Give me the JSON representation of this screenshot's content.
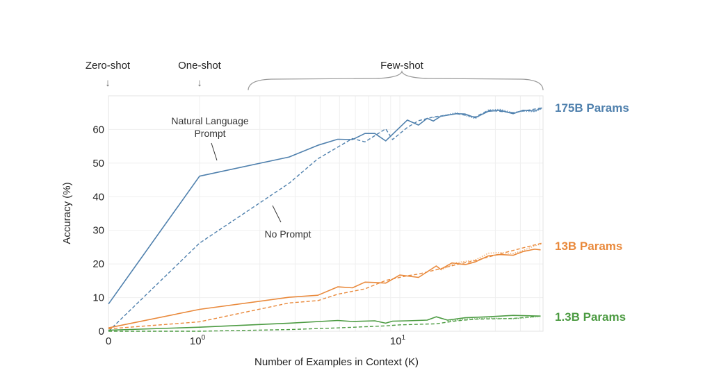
{
  "chart_data": {
    "type": "line",
    "xlabel": "Number of Examples in Context  (K)",
    "ylabel": "Accuracy (%)",
    "xscale": "symlog",
    "xlim": [
      0,
      51
    ],
    "ylim": [
      0,
      70
    ],
    "grid": true,
    "x_tick_labels": [
      {
        "value": 0,
        "label": "0"
      },
      {
        "value": 1,
        "label": "10",
        "exp": "0"
      },
      {
        "value": 10,
        "label": "10",
        "exp": "1"
      }
    ],
    "y_ticks": [
      0,
      10,
      20,
      30,
      40,
      50,
      60
    ],
    "header_annotations": {
      "zero_shot": "Zero-shot",
      "one_shot": "One-shot",
      "few_shot": "Few-shot"
    },
    "annotations": {
      "natural_language_1": "Natural Language",
      "natural_language_2": "Prompt",
      "no_prompt": "No Prompt"
    },
    "series_labels": [
      {
        "label": "175B Params",
        "color": "#4f80ad"
      },
      {
        "label": "13B Params",
        "color": "#e9893b"
      },
      {
        "label": "1.3B Params",
        "color": "#4c9b42"
      }
    ],
    "series": [
      {
        "group": 0,
        "style": "solid",
        "color": "#4f80ad",
        "x": [
          0,
          1,
          2.8,
          3.9,
          4.9,
          5.8,
          6.7,
          7.5,
          8.5,
          10.9,
          12.4,
          13.7,
          14.7,
          16,
          19.2,
          21.2,
          23.8,
          27.7,
          31.6,
          36.8,
          41.3,
          47.2,
          51.3
        ],
        "y": [
          8.1,
          46.1,
          51.8,
          55.3,
          57.1,
          57,
          58.8,
          58.8,
          56.6,
          62.8,
          61.3,
          63.3,
          62.5,
          63.9,
          64.7,
          64.6,
          63.5,
          65.4,
          65.7,
          64.7,
          65.7,
          65.5,
          66.4
        ]
      },
      {
        "group": 0,
        "style": "dashed",
        "color": "#4f80ad",
        "x": [
          0,
          1,
          2.8,
          3.9,
          5.8,
          6.7,
          8.5,
          9.2,
          10.9,
          12.4,
          14.7,
          19.2,
          23.8,
          27.7,
          36.8,
          51.3
        ],
        "y": [
          0,
          26.2,
          44,
          51.3,
          57.3,
          56.3,
          60.2,
          57,
          60.6,
          62.6,
          63.7,
          64.7,
          63.7,
          65.7,
          65,
          66.4
        ]
      },
      {
        "group": 0,
        "style": "dotted",
        "color": "#6f9cc4",
        "x": [
          14.7,
          19.2,
          23.8,
          27.7,
          31.6,
          36.8,
          41.3,
          47.2,
          51.3
        ],
        "y": [
          63.5,
          65,
          63.2,
          65.8,
          66,
          65,
          65.4,
          65.3,
          66.2
        ]
      },
      {
        "group": 1,
        "style": "solid",
        "color": "#e9893b",
        "x": [
          0,
          1,
          2.8,
          3.9,
          4.9,
          5.8,
          6.7,
          7.5,
          8.5,
          10,
          12.4,
          15.2,
          16,
          18.2,
          21.2,
          23.8,
          27.7,
          31.6,
          36.8,
          41.3,
          47.2,
          50.5
        ],
        "y": [
          1,
          6.5,
          10.1,
          10.7,
          13.2,
          12.9,
          14.6,
          14.5,
          14.3,
          16.7,
          16,
          19.4,
          18.4,
          20.3,
          19.8,
          20.6,
          22.4,
          22.8,
          22.6,
          23.7,
          24.4,
          24.2
        ]
      },
      {
        "group": 1,
        "style": "dashed",
        "color": "#e9893b",
        "x": [
          0,
          1,
          2.8,
          3.9,
          4.9,
          6.7,
          8.5,
          10.9,
          12.4,
          16,
          19.2,
          23.8,
          31.6,
          41.3,
          51.3
        ],
        "y": [
          0.7,
          2.8,
          8.4,
          9.1,
          11,
          12.6,
          15.1,
          16.5,
          17,
          18.6,
          19.8,
          21,
          23,
          24.8,
          26.2
        ]
      },
      {
        "group": 1,
        "style": "dotted",
        "color": "#f0a868",
        "x": [
          16,
          19.2,
          23.8,
          27.7,
          31.6,
          36.8,
          41.3,
          47.2,
          51.3
        ],
        "y": [
          18.2,
          20.4,
          21.2,
          23.2,
          23.4,
          23.1,
          24,
          25.4,
          26
        ]
      },
      {
        "group": 2,
        "style": "solid",
        "color": "#4c9b42",
        "x": [
          0,
          1,
          2.8,
          4.9,
          5.8,
          7.5,
          8.5,
          9.2,
          10.9,
          13.7,
          15.2,
          17.3,
          21.2,
          27.7,
          36.8,
          50.5
        ],
        "y": [
          0.3,
          1.2,
          2.4,
          3.2,
          2.9,
          3.1,
          2.4,
          3,
          3.1,
          3.3,
          4.3,
          3.3,
          4,
          4.3,
          4.7,
          4.5
        ]
      },
      {
        "group": 2,
        "style": "dashed",
        "color": "#4c9b42",
        "x": [
          0,
          1,
          2.8,
          4.9,
          8.5,
          10,
          15.2,
          19.2,
          24.2,
          36.8,
          50.5
        ],
        "y": [
          0,
          0,
          0.5,
          1,
          1.6,
          1.9,
          2.2,
          3.1,
          3.6,
          3.8,
          4.5
        ]
      },
      {
        "group": 2,
        "style": "dotted",
        "color": "#6cb363",
        "x": [
          17.3,
          21.2,
          27.7,
          36.8,
          50.5
        ],
        "y": [
          3.0,
          3.6,
          3.9,
          3.7,
          4.4
        ]
      }
    ]
  }
}
